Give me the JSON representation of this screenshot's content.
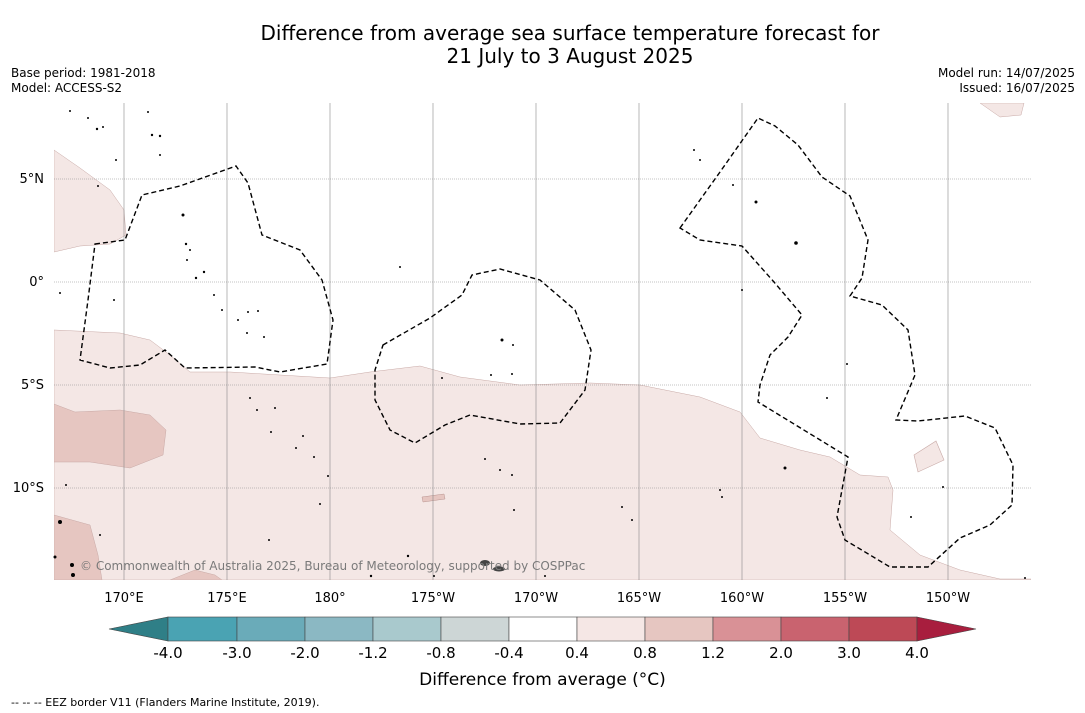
{
  "title": {
    "line1": "Difference from average sea surface temperature forecast for",
    "line2": "21 July to 3 August 2025"
  },
  "meta_left": {
    "base_period": "Base period: 1981-2018",
    "model": "Model: ACCESS-S2"
  },
  "meta_right": {
    "model_run": "Model run: 14/07/2025",
    "issued": "Issued: 16/07/2025"
  },
  "map": {
    "lat_labels": [
      "5°N",
      "0°",
      "5°S",
      "10°S"
    ],
    "lon_labels": [
      "170°E",
      "175°E",
      "180°",
      "175°W",
      "170°W",
      "165°W",
      "160°W",
      "155°W",
      "150°W"
    ],
    "copyright": "© Commonwealth of Australia 2025, Bureau of Meteorology, supported by COSPPac"
  },
  "colorbar": {
    "tick_labels": [
      "-4.0",
      "-3.0",
      "-2.0",
      "-1.2",
      "-0.8",
      "-0.4",
      "0.4",
      "0.8",
      "1.2",
      "2.0",
      "3.0",
      "4.0"
    ],
    "colors": [
      "#2f7f87",
      "#4aa3b3",
      "#6aabb9",
      "#8bb8c3",
      "#a9c9cd",
      "#cdd6d6",
      "#ffffff",
      "#f5e7e5",
      "#e6c6c1",
      "#d99196",
      "#c9636f",
      "#bd4956",
      "#a81e3e"
    ],
    "label": "Difference from average (°C)"
  },
  "legend_note": "--  --  -- EEZ border V11 (Flanders Marine Institute, 2019)."
}
